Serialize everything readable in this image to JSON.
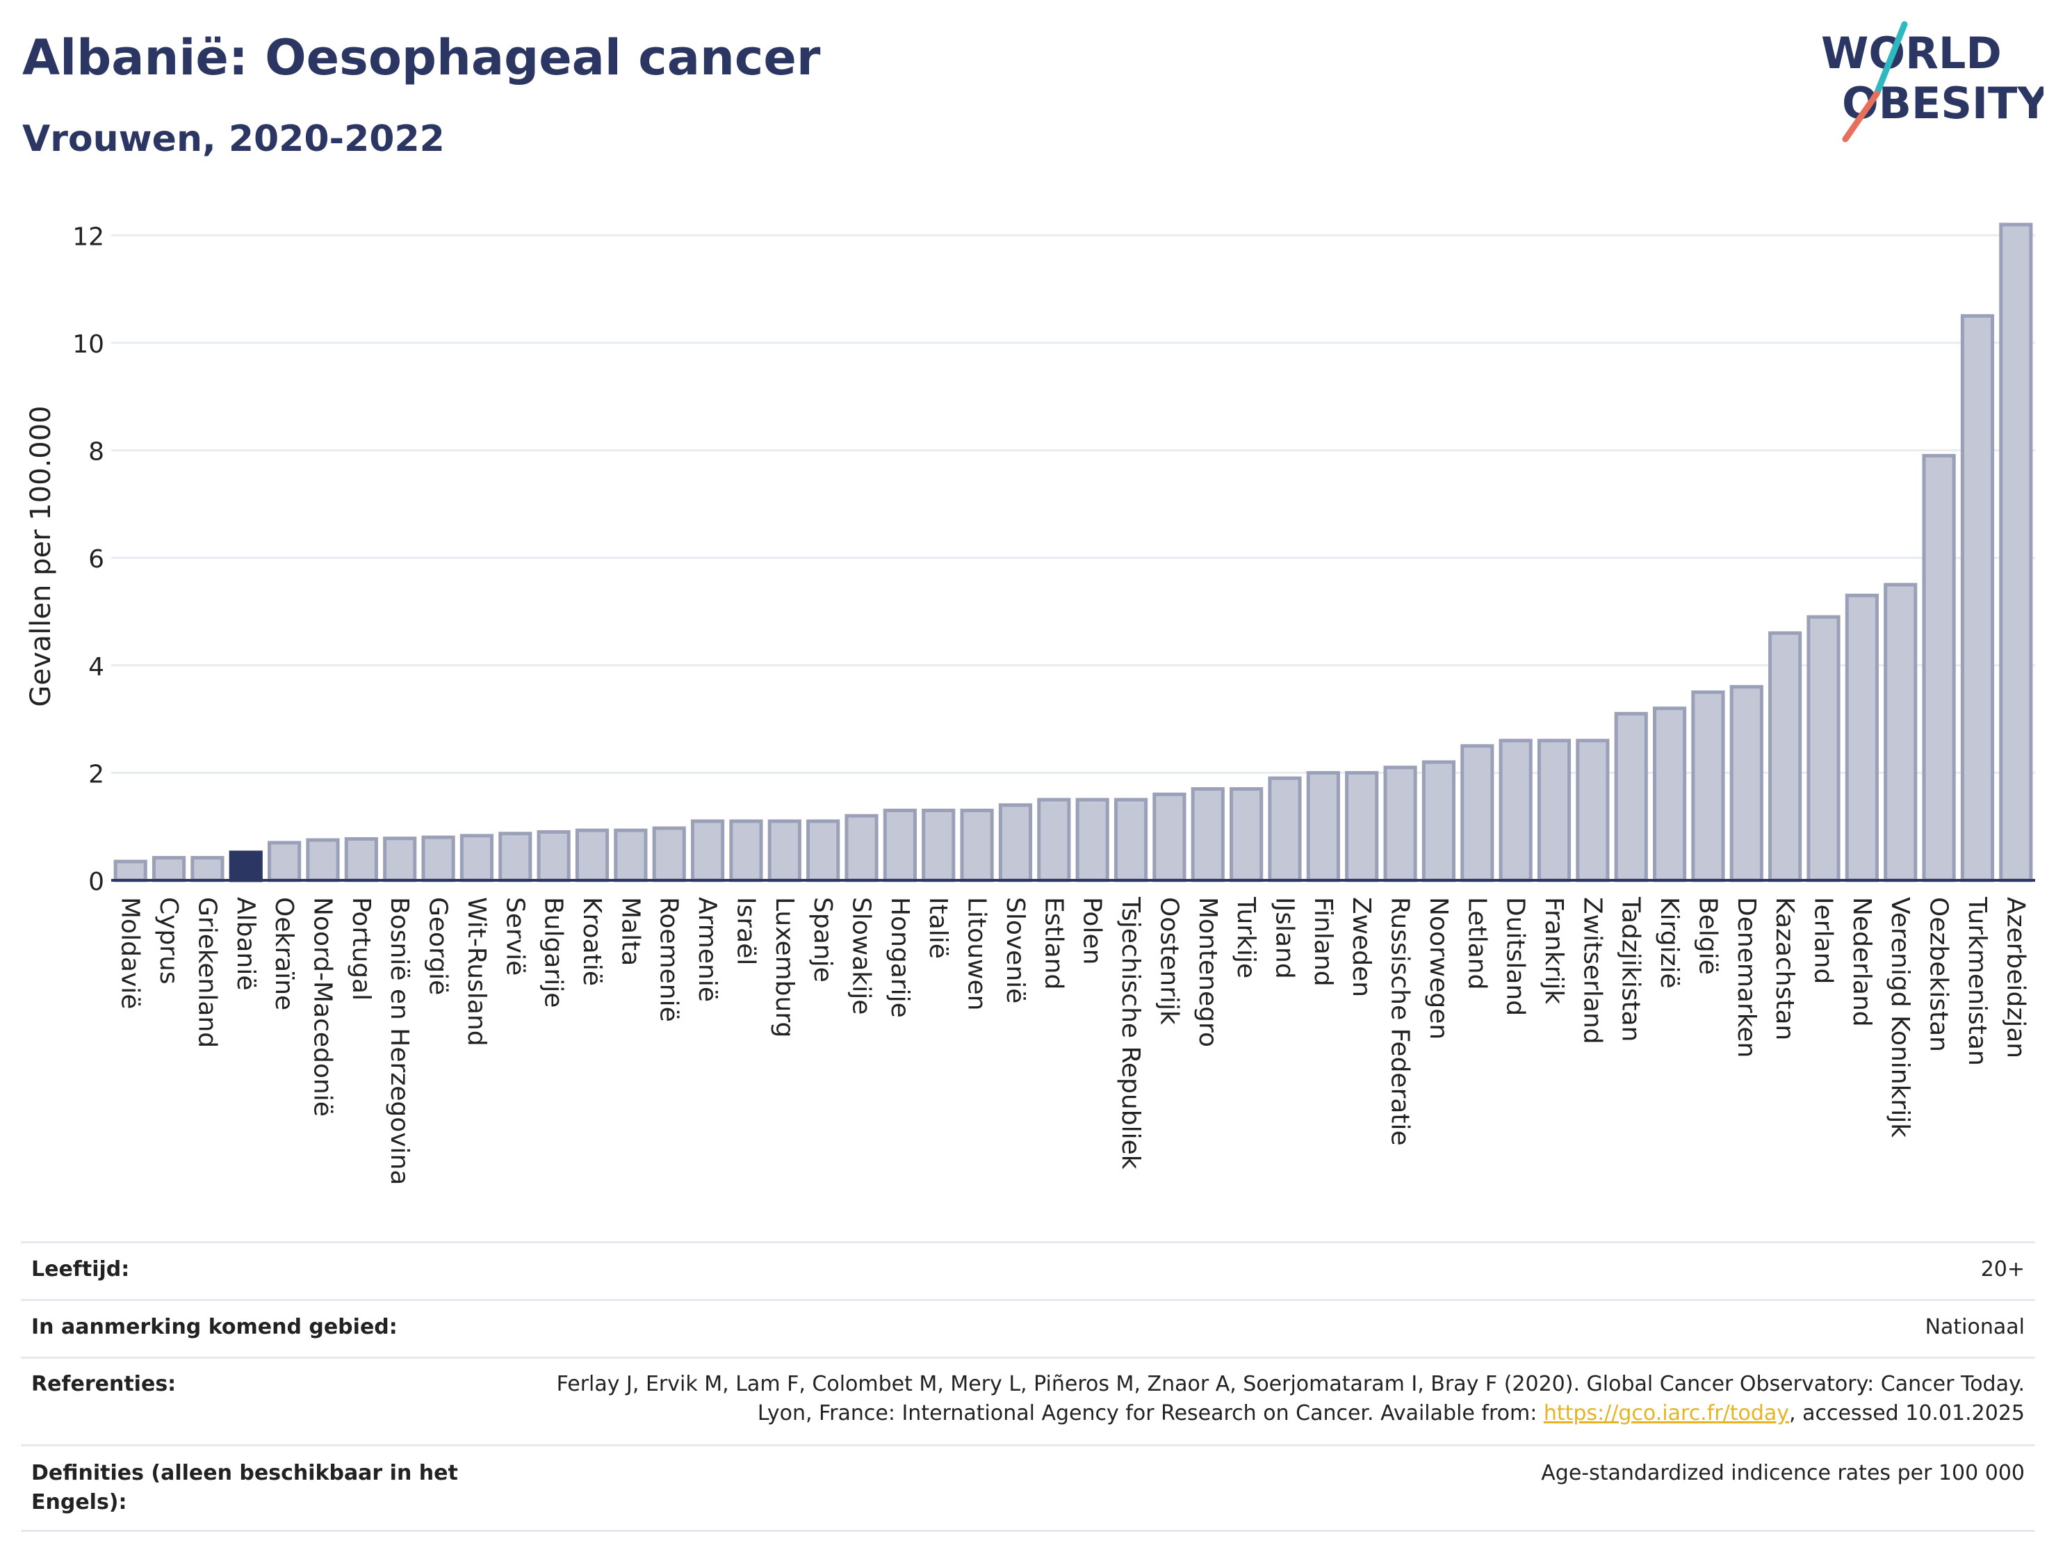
{
  "header": {
    "title": "Albanië: Oesophageal cancer",
    "subtitle": "Vrouwen, 2020-2022"
  },
  "logo": {
    "line1": "WORLD",
    "line2": "OBESITY"
  },
  "chart_data": {
    "type": "bar",
    "ylabel": "Gevallen per 100.000",
    "xlabel": "",
    "ylim": [
      0,
      12.5
    ],
    "yticks": [
      0,
      2,
      4,
      6,
      8,
      10,
      12
    ],
    "grid": true,
    "highlight": "Albanië",
    "colors": {
      "bar": "#c3c7d6",
      "bar_edge": "#9aa0b8",
      "highlight": "#2b3663",
      "grid": "#e8ebf0",
      "axis": "#2b3663"
    },
    "categories": [
      "Moldavië",
      "Cyprus",
      "Griekenland",
      "Albanië",
      "Oekraïne",
      "Noord-Macedonië",
      "Portugal",
      "Bosnië en Herzegovina",
      "Georgië",
      "Wit-Rusland",
      "Servië",
      "Bulgarije",
      "Kroatië",
      "Malta",
      "Roemenië",
      "Armenië",
      "Israël",
      "Luxemburg",
      "Spanje",
      "Slowakije",
      "Hongarije",
      "Italië",
      "Litouwen",
      "Slovenië",
      "Estland",
      "Polen",
      "Tsjechische Republiek",
      "Oostenrijk",
      "Montenegro",
      "Turkije",
      "IJsland",
      "Finland",
      "Zweden",
      "Russische Federatie",
      "Noorwegen",
      "Letland",
      "Duitsland",
      "Frankrijk",
      "Zwitserland",
      "Tadzjikistan",
      "Kirgizië",
      "België",
      "Denemarken",
      "Kazachstan",
      "Ierland",
      "Nederland",
      "Verenigd Koninkrijk",
      "Oezbekistan",
      "Turkmenistan",
      "Azerbeidzjan"
    ],
    "values": [
      0.35,
      0.42,
      0.42,
      0.52,
      0.7,
      0.75,
      0.77,
      0.78,
      0.8,
      0.83,
      0.87,
      0.9,
      0.93,
      0.93,
      0.97,
      1.1,
      1.1,
      1.1,
      1.1,
      1.2,
      1.3,
      1.3,
      1.3,
      1.4,
      1.5,
      1.5,
      1.5,
      1.6,
      1.7,
      1.7,
      1.9,
      2.0,
      2.0,
      2.1,
      2.2,
      2.5,
      2.6,
      2.6,
      2.6,
      3.1,
      3.2,
      3.5,
      3.6,
      4.6,
      4.9,
      5.3,
      5.5,
      7.9,
      10.5,
      12.2
    ]
  },
  "meta": {
    "age_label": "Leeftijd:",
    "age_value": "20+",
    "area_label": "In aanmerking komend gebied:",
    "area_value": "Nationaal",
    "ref_label": "Referenties:",
    "ref_text_1": "Ferlay J, Ervik M, Lam F, Colombet M, Mery L, Piñeros M, Znaor A, Soerjomataram I, Bray F (2020). Global Cancer Observatory: Cancer Today. Lyon, France: International Agency for Research on Cancer. Available from: ",
    "ref_link": "https://gco.iarc.fr/today",
    "ref_text_2": ", accessed 10.01.2025",
    "def_label": "Definities (alleen beschikbaar in het Engels):",
    "def_value": "Age-standardized indicence rates per 100 000"
  }
}
